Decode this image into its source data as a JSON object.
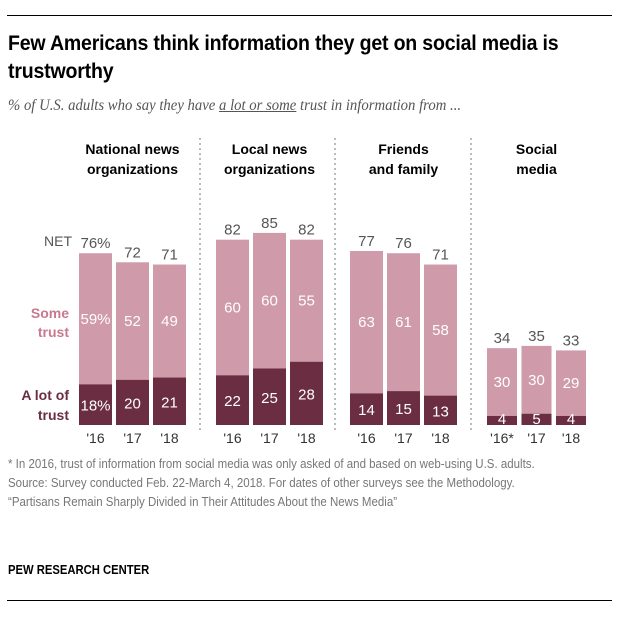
{
  "title": "Few Americans think information they get on social media is trustworthy",
  "subtitle": {
    "before": "% of U.S. adults who say they have ",
    "underlined": "a lot or some",
    "after": " trust in information from ..."
  },
  "colors": {
    "some_trust": "#cf9aa9",
    "a_lot_trust": "#6b2d42",
    "some_label": "#c8798f",
    "a_lot_label": "#6b2d42",
    "net_text": "#555555"
  },
  "chart_data": {
    "type": "bar",
    "stacked": true,
    "title": "Few Americans think information they get on social media is trustworthy",
    "ylabel": "% of U.S. adults",
    "ylim": [
      0,
      100
    ],
    "grid": false,
    "row_labels": {
      "net": "NET",
      "some": "Some trust",
      "a_lot": "A lot of trust"
    },
    "groups": [
      {
        "name": "National news organizations",
        "name_lines": [
          "National news",
          "organizations"
        ],
        "categories": [
          "'16",
          "'17",
          "'18"
        ],
        "net": [
          76,
          72,
          71
        ],
        "net_labels": [
          "76%",
          "72",
          "71"
        ],
        "some": [
          59,
          52,
          49
        ],
        "some_labels": [
          "59%",
          "52",
          "49"
        ],
        "a_lot": [
          18,
          20,
          21
        ],
        "a_lot_labels": [
          "18%",
          "20",
          "21"
        ]
      },
      {
        "name": "Local news organizations",
        "name_lines": [
          "Local news",
          "organizations"
        ],
        "categories": [
          "'16",
          "'17",
          "'18"
        ],
        "net": [
          82,
          85,
          82
        ],
        "net_labels": [
          "82",
          "85",
          "82"
        ],
        "some": [
          60,
          60,
          55
        ],
        "some_labels": [
          "60",
          "60",
          "55"
        ],
        "a_lot": [
          22,
          25,
          28
        ],
        "a_lot_labels": [
          "22",
          "25",
          "28"
        ]
      },
      {
        "name": "Friends and family",
        "name_lines": [
          "Friends",
          "and family"
        ],
        "categories": [
          "'16",
          "'17",
          "'18"
        ],
        "net": [
          77,
          76,
          71
        ],
        "net_labels": [
          "77",
          "76",
          "71"
        ],
        "some": [
          63,
          61,
          58
        ],
        "some_labels": [
          "63",
          "61",
          "58"
        ],
        "a_lot": [
          14,
          15,
          13
        ],
        "a_lot_labels": [
          "14",
          "15",
          "13"
        ]
      },
      {
        "name": "Social media",
        "name_lines": [
          "Social",
          "media"
        ],
        "categories": [
          "'16*",
          "'17",
          "'18"
        ],
        "net": [
          34,
          35,
          33
        ],
        "net_labels": [
          "34",
          "35",
          "33"
        ],
        "some": [
          30,
          30,
          29
        ],
        "some_labels": [
          "30",
          "30",
          "29"
        ],
        "a_lot": [
          4,
          5,
          4
        ],
        "a_lot_labels": [
          "4",
          "5",
          "4"
        ]
      }
    ]
  },
  "notes": {
    "footnote": "* In 2016, trust of information from social media was only asked of and based on web-using U.S. adults.",
    "source": "Source: Survey conducted Feb. 22-March 4, 2018. For dates of other surveys see the Methodology.",
    "report": "“Partisans Remain Sharply Divided in Their Attitudes About the News Media”"
  },
  "brand": "PEW RESEARCH CENTER"
}
